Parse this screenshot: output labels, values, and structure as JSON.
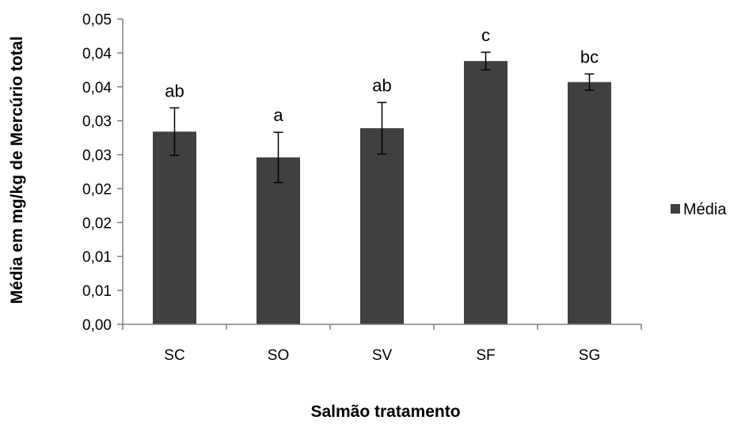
{
  "chart_data": {
    "type": "bar",
    "categories": [
      "SC",
      "SO",
      "SV",
      "SF",
      "SG"
    ],
    "series": [
      {
        "name": "Média",
        "values": [
          0.0284,
          0.0246,
          0.0289,
          0.0388,
          0.0357
        ],
        "error": [
          0.0035,
          0.0037,
          0.0038,
          0.0013,
          0.0012
        ],
        "labels": [
          "ab",
          "a",
          "ab",
          "c",
          "bc"
        ],
        "color": "#404040"
      }
    ],
    "ylim": [
      0,
      0.045
    ],
    "yticks": [
      0,
      0.005,
      0.01,
      0.015,
      0.02,
      0.025,
      0.03,
      0.035,
      0.04,
      0.045
    ],
    "ytick_labels": [
      "0,00",
      "0,01",
      "0,01",
      "0,02",
      "0,02",
      "0,03",
      "0,03",
      "0,04",
      "0,04",
      "0,05"
    ],
    "xlabel": "Salmão tratamento",
    "ylabel": "Média em mg/kg de Mercúrio total",
    "legend_position": "right",
    "grid": false
  }
}
